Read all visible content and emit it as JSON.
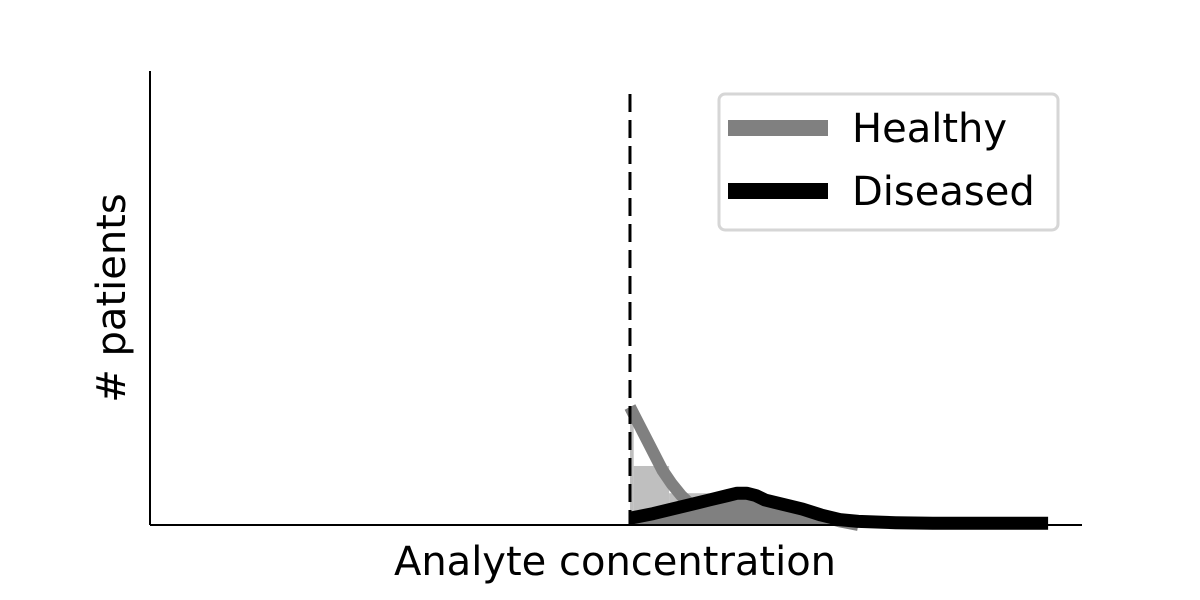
{
  "chart_data": {
    "type": "area",
    "title": "",
    "xlabel": "Analyte concentration",
    "ylabel": "# patients",
    "xlim": [
      0,
      1
    ],
    "ylim": [
      0,
      1
    ],
    "x_ticks_shown": false,
    "y_ticks_shown": false,
    "grid": false,
    "legend_position": "top-right",
    "threshold": {
      "x": 0.515,
      "style": "dashed",
      "color": "#000000"
    },
    "histogram_bins": [
      {
        "x0": 0.515,
        "x1": 0.519,
        "value": 0.26
      },
      {
        "x0": 0.519,
        "x1": 0.557,
        "value": 0.13
      },
      {
        "x0": 0.557,
        "x1": 0.6,
        "value": 0.07
      }
    ],
    "series": [
      {
        "name": "Healthy",
        "color": "#808080",
        "x": [
          0.515,
          0.52,
          0.53,
          0.54,
          0.55,
          0.56,
          0.57,
          0.58,
          0.59,
          0.6,
          0.62,
          0.64,
          0.66,
          0.68,
          0.7,
          0.72,
          0.74,
          0.76
        ],
        "values": [
          0.26,
          0.24,
          0.2,
          0.16,
          0.12,
          0.09,
          0.065,
          0.045,
          0.035,
          0.035,
          0.05,
          0.06,
          0.055,
          0.04,
          0.03,
          0.02,
          0.008,
          0.0
        ]
      },
      {
        "name": "Diseased",
        "color": "#000000",
        "x": [
          0.515,
          0.54,
          0.56,
          0.58,
          0.6,
          0.62,
          0.63,
          0.64,
          0.65,
          0.66,
          0.68,
          0.7,
          0.72,
          0.74,
          0.76,
          0.8,
          0.84,
          0.88,
          0.9636
        ],
        "values": [
          0.015,
          0.025,
          0.035,
          0.045,
          0.055,
          0.065,
          0.07,
          0.07,
          0.065,
          0.055,
          0.045,
          0.035,
          0.022,
          0.012,
          0.008,
          0.005,
          0.004,
          0.004,
          0.004
        ]
      }
    ]
  }
}
